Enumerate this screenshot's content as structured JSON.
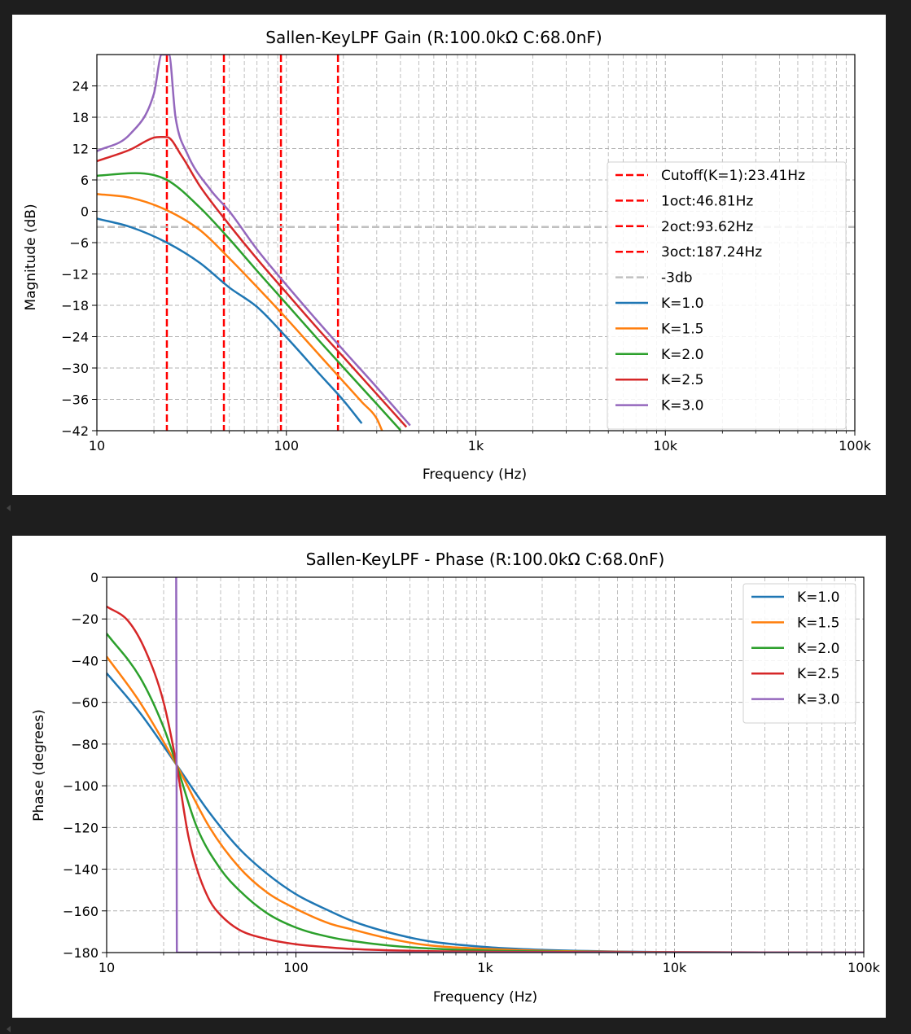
{
  "chart_data": [
    {
      "type": "line",
      "title": "Sallen-KeyLPF Gain (R:100.0kΩ C:68.0nF)",
      "xlabel": "Frequency (Hz)",
      "ylabel": "Magnitude (dB)",
      "xscale": "log",
      "xlim": [
        10,
        100000
      ],
      "ylim": [
        -42,
        30
      ],
      "xticks": [
        10,
        100,
        1000,
        10000,
        100000
      ],
      "xtick_labels": [
        "10",
        "100",
        "1k",
        "10k",
        "100k"
      ],
      "yticks": [
        24,
        18,
        12,
        6,
        0,
        -6,
        -12,
        -18,
        -24,
        -30,
        -36,
        -42
      ],
      "ytick_labels": [
        "24",
        "18",
        "12",
        "6",
        "0",
        "−6",
        "−12",
        "−18",
        "−24",
        "−30",
        "−36",
        "−42"
      ],
      "grid": true,
      "legend": "center-right",
      "vlines": [
        {
          "name": "Cutoff(K=1):23.41Hz",
          "x": 23.41,
          "color": "#ff0000",
          "style": "dashed"
        },
        {
          "name": "1oct:46.81Hz",
          "x": 46.81,
          "color": "#ff0000",
          "style": "dashed"
        },
        {
          "name": "2oct:93.62Hz",
          "x": 93.62,
          "color": "#ff0000",
          "style": "dashed"
        },
        {
          "name": "3oct:187.24Hz",
          "x": 187.24,
          "color": "#ff0000",
          "style": "dashed"
        }
      ],
      "hlines": [
        {
          "name": "-3db",
          "y": -3,
          "color": "#c0c0c0",
          "style": "dashed"
        }
      ],
      "series": [
        {
          "name": "K=1.0",
          "color": "#1f77b4",
          "x": [
            10,
            15,
            23.41,
            35,
            50,
            70,
            100,
            150,
            200,
            250
          ],
          "y": [
            -1.4,
            -3.0,
            -6.0,
            -9.9,
            -14.6,
            -18.3,
            -24.1,
            -31.2,
            -36.2,
            -40.6
          ]
        },
        {
          "name": "K=1.5",
          "color": "#ff7f0e",
          "x": [
            10,
            15,
            23.41,
            35,
            50,
            70,
            100,
            150,
            200,
            250,
            300,
            320
          ],
          "y": [
            3.3,
            2.6,
            0.2,
            -3.6,
            -9.0,
            -14.5,
            -20.5,
            -27.6,
            -32.6,
            -36.5,
            -39.7,
            -42
          ]
        },
        {
          "name": "K=2.0",
          "color": "#2ca02c",
          "x": [
            10,
            16,
            23.41,
            35,
            50,
            70,
            100,
            150,
            200,
            300,
            400
          ],
          "y": [
            6.8,
            7.3,
            6.0,
            0.7,
            -5.3,
            -11.4,
            -17.7,
            -24.9,
            -29.9,
            -36.9,
            -41.9
          ]
        },
        {
          "name": "K=2.5",
          "color": "#d62728",
          "x": [
            10,
            15,
            20,
            23.41,
            28,
            35,
            50,
            70,
            100,
            150,
            200,
            300,
            430
          ],
          "y": [
            9.6,
            11.8,
            14.1,
            14.2,
            10.6,
            4.8,
            -2.6,
            -9.1,
            -15.6,
            -22.9,
            -27.9,
            -35.0,
            -41.3
          ]
        },
        {
          "name": "K=3.0",
          "color": "#9467bd",
          "x": [
            10,
            15,
            20,
            22,
            23.0,
            23.41,
            24.0,
            26,
            30,
            40,
            50,
            70,
            100,
            150,
            200,
            300,
            450
          ],
          "y": [
            11.5,
            14.8,
            22.5,
            30,
            30,
            30,
            30,
            18.0,
            11.0,
            4.0,
            0.0,
            -7.3,
            -14.1,
            -21.5,
            -26.6,
            -33.7,
            -41.0
          ]
        }
      ]
    },
    {
      "type": "line",
      "title": "Sallen-KeyLPF - Phase (R:100.0kΩ C:68.0nF)",
      "xlabel": "Frequency (Hz)",
      "ylabel": "Phase (degrees)",
      "xscale": "log",
      "xlim": [
        10,
        100000
      ],
      "ylim": [
        -180,
        0
      ],
      "xticks": [
        10,
        100,
        1000,
        10000,
        100000
      ],
      "xtick_labels": [
        "10",
        "100",
        "1k",
        "10k",
        "100k"
      ],
      "yticks": [
        0,
        -20,
        -40,
        -60,
        -80,
        -100,
        -120,
        -140,
        -160,
        -180
      ],
      "ytick_labels": [
        "0",
        "−20",
        "−40",
        "−60",
        "−80",
        "−100",
        "−120",
        "−140",
        "−160",
        "−180"
      ],
      "grid": true,
      "legend": "top-right",
      "series": [
        {
          "name": "K=1.0",
          "color": "#1f77b4",
          "x": [
            10,
            15,
            23.41,
            35,
            50,
            70,
            100,
            150,
            200,
            300,
            500,
            1000,
            2000,
            5000,
            10000,
            100000
          ],
          "y": [
            -46,
            -65,
            -90,
            -113,
            -130,
            -142,
            -152,
            -160,
            -165,
            -170,
            -174.5,
            -177.3,
            -178.7,
            -179.5,
            -179.8,
            -180
          ]
        },
        {
          "name": "K=1.5",
          "color": "#ff7f0e",
          "x": [
            10,
            15,
            23.41,
            35,
            50,
            70,
            100,
            150,
            200,
            300,
            500,
            1000,
            2000,
            10000,
            100000
          ],
          "y": [
            -38,
            -60,
            -90,
            -120,
            -139,
            -151,
            -159,
            -166,
            -169,
            -173,
            -176.5,
            -178.2,
            -179.1,
            -179.8,
            -180
          ]
        },
        {
          "name": "K=2.0",
          "color": "#2ca02c",
          "x": [
            10,
            15,
            20,
            23.41,
            30,
            40,
            50,
            70,
            100,
            150,
            200,
            300,
            500,
            1000,
            10000,
            100000
          ],
          "y": [
            -27,
            -48,
            -72,
            -90,
            -120,
            -140,
            -150,
            -161,
            -168,
            -172.5,
            -174.5,
            -176.5,
            -178,
            -179,
            -179.9,
            -180
          ]
        },
        {
          "name": "K=2.5",
          "color": "#d62728",
          "x": [
            10,
            13,
            16,
            20,
            23.41,
            27,
            30,
            35,
            40,
            50,
            70,
            100,
            150,
            200,
            500,
            1000,
            100000
          ],
          "y": [
            -14,
            -21,
            -35,
            -60,
            -90,
            -124,
            -140,
            -155,
            -162,
            -169,
            -173.5,
            -176,
            -177.5,
            -178.3,
            -179.3,
            -179.6,
            -180
          ]
        },
        {
          "name": "K=3.0",
          "color": "#9467bd",
          "x": [
            23.3,
            23.41,
            23.5,
            30,
            100,
            1000,
            10000,
            100000
          ],
          "y": [
            0,
            -90,
            -180,
            -180,
            -180,
            -180,
            -180,
            -180
          ]
        }
      ]
    }
  ]
}
